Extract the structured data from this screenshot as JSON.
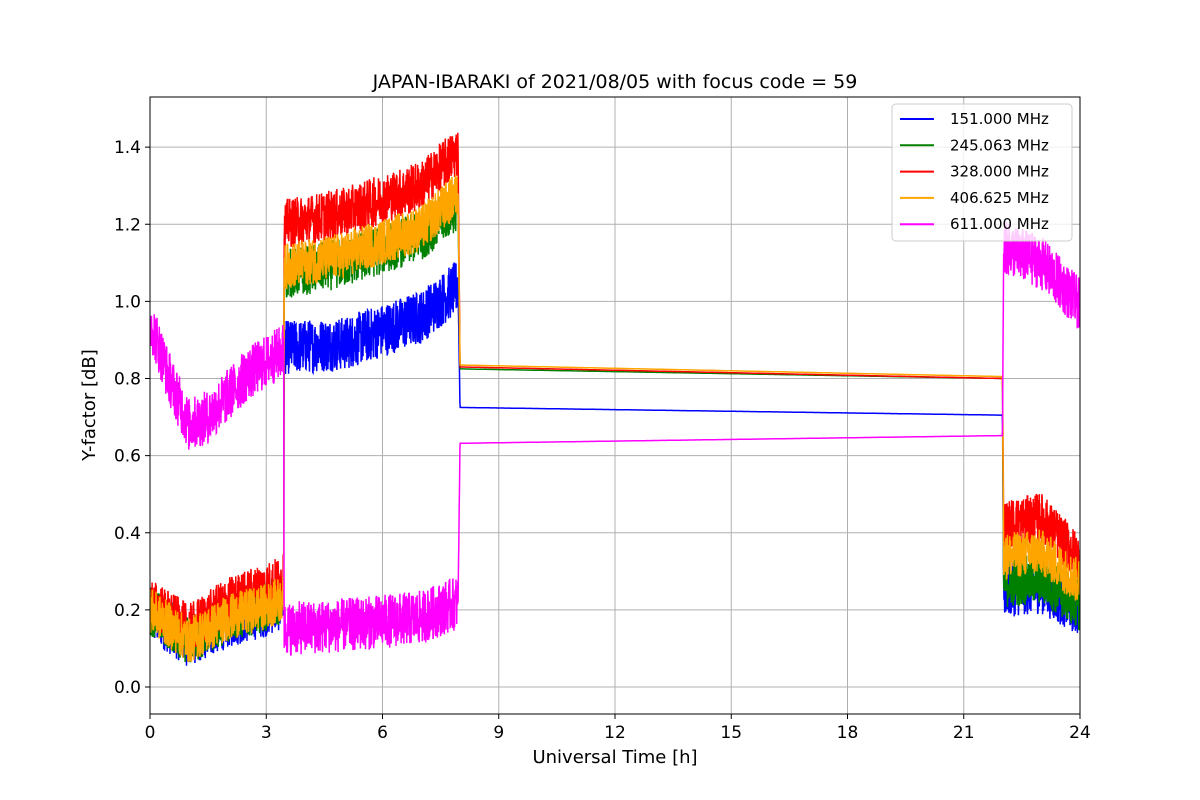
{
  "chart_data": {
    "type": "line",
    "title": "JAPAN-IBARAKI of 2021/08/05 with focus code = 59",
    "xlabel": "Universal Time [h]",
    "ylabel": "Y-factor [dB]",
    "xlim": [
      0,
      24
    ],
    "ylim": [
      -0.07,
      1.53
    ],
    "xticks": [
      0,
      3,
      6,
      9,
      12,
      15,
      18,
      21,
      24
    ],
    "yticks": [
      0.0,
      0.2,
      0.4,
      0.6,
      0.8,
      1.0,
      1.2,
      1.4
    ],
    "ytick_labels": [
      "0.0",
      "0.2",
      "0.4",
      "0.6",
      "0.8",
      "1.0",
      "1.2",
      "1.4"
    ],
    "grid": true,
    "legend_position": "top-right",
    "series": [
      {
        "name": "151.000 MHz",
        "color": "#0000ff",
        "noise_amplitude": 0.07,
        "points": [
          [
            0.0,
            0.19
          ],
          [
            1.0,
            0.12
          ],
          [
            2.0,
            0.17
          ],
          [
            3.0,
            0.2
          ],
          [
            3.45,
            0.22
          ],
          [
            3.46,
            0.88
          ],
          [
            5.0,
            0.89
          ],
          [
            7.0,
            0.96
          ],
          [
            7.95,
            1.04
          ],
          [
            8.0,
            0.725
          ],
          [
            22.0,
            0.705
          ],
          [
            22.03,
            0.25
          ],
          [
            23.0,
            0.26
          ],
          [
            24.0,
            0.2
          ]
        ]
      },
      {
        "name": "245.063 MHz",
        "color": "#008000",
        "noise_amplitude": 0.065,
        "points": [
          [
            0.0,
            0.2
          ],
          [
            1.0,
            0.12
          ],
          [
            2.0,
            0.18
          ],
          [
            3.0,
            0.21
          ],
          [
            3.45,
            0.23
          ],
          [
            3.46,
            1.07
          ],
          [
            5.0,
            1.1
          ],
          [
            7.0,
            1.17
          ],
          [
            7.95,
            1.25
          ],
          [
            8.0,
            0.825
          ],
          [
            22.0,
            0.8
          ],
          [
            22.03,
            0.27
          ],
          [
            23.0,
            0.28
          ],
          [
            24.0,
            0.21
          ]
        ]
      },
      {
        "name": "328.000 MHz",
        "color": "#ff0000",
        "noise_amplitude": 0.065,
        "points": [
          [
            0.0,
            0.22
          ],
          [
            1.0,
            0.15
          ],
          [
            2.0,
            0.22
          ],
          [
            3.0,
            0.26
          ],
          [
            3.45,
            0.28
          ],
          [
            3.46,
            1.2
          ],
          [
            5.0,
            1.23
          ],
          [
            7.0,
            1.3
          ],
          [
            7.95,
            1.39
          ],
          [
            8.0,
            0.83
          ],
          [
            22.0,
            0.8
          ],
          [
            22.03,
            0.42
          ],
          [
            23.0,
            0.44
          ],
          [
            24.0,
            0.33
          ]
        ]
      },
      {
        "name": "406.625 MHz",
        "color": "#ffa500",
        "noise_amplitude": 0.06,
        "points": [
          [
            0.0,
            0.2
          ],
          [
            1.0,
            0.12
          ],
          [
            2.0,
            0.18
          ],
          [
            3.0,
            0.21
          ],
          [
            3.45,
            0.23
          ],
          [
            3.46,
            1.09
          ],
          [
            5.0,
            1.12
          ],
          [
            7.0,
            1.19
          ],
          [
            7.95,
            1.28
          ],
          [
            8.0,
            0.835
          ],
          [
            22.0,
            0.805
          ],
          [
            22.03,
            0.34
          ],
          [
            23.0,
            0.35
          ],
          [
            24.0,
            0.27
          ]
        ]
      },
      {
        "name": "611.000 MHz",
        "color": "#ff00ff",
        "noise_amplitude": 0.07,
        "points": [
          [
            0.0,
            0.95
          ],
          [
            0.5,
            0.8
          ],
          [
            1.0,
            0.68
          ],
          [
            1.5,
            0.7
          ],
          [
            2.5,
            0.81
          ],
          [
            3.4,
            0.87
          ],
          [
            3.45,
            0.88
          ],
          [
            3.46,
            0.15
          ],
          [
            5.0,
            0.16
          ],
          [
            7.0,
            0.18
          ],
          [
            7.95,
            0.22
          ],
          [
            8.0,
            0.632
          ],
          [
            22.0,
            0.652
          ],
          [
            22.03,
            1.14
          ],
          [
            23.0,
            1.1
          ],
          [
            24.0,
            0.99
          ]
        ]
      }
    ]
  }
}
